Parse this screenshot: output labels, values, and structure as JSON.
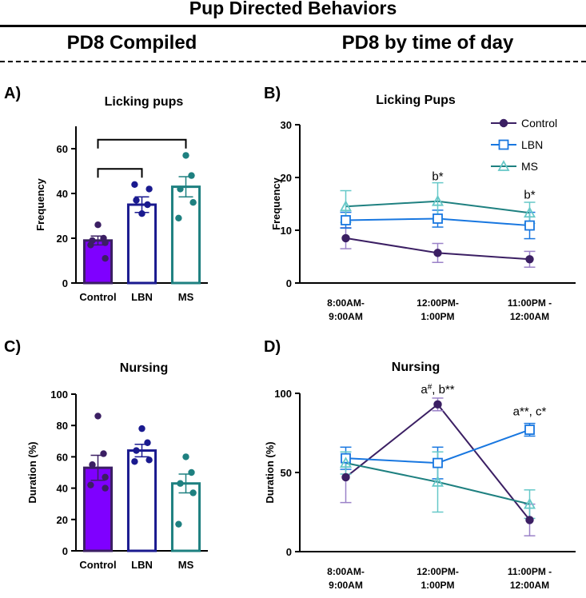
{
  "page": {
    "title": "Pup Directed Behaviors",
    "left_heading": "PD8 Compiled",
    "right_heading": "PD8 by time of day"
  },
  "colors": {
    "control": "#3b1f63",
    "control_err": "#9b82c8",
    "control_bar": "#7f00ff",
    "lbn": "#1877e0",
    "lbn_bar_edge": "#1a1a8f",
    "lbn_dot": "#1a1a8f",
    "ms": "#1e8080",
    "ms_marker": "#66c8c8"
  },
  "chart_data": [
    {
      "id": "A",
      "panel_label": "A)",
      "type": "bar",
      "title": "Licking pups",
      "ylabel": "Frequency",
      "ylim": [
        0,
        70
      ],
      "yticks": [
        0,
        20,
        40,
        60
      ],
      "categories": [
        "Control",
        "LBN",
        "MS"
      ],
      "values": [
        19,
        35,
        43
      ],
      "sem": [
        2,
        3.5,
        4.5
      ],
      "points": [
        [
          26,
          20,
          19,
          18,
          17,
          11
        ],
        [
          31,
          35,
          37,
          42,
          44
        ],
        [
          57,
          48,
          42,
          36,
          29
        ]
      ],
      "significance": [
        [
          "Control",
          "LBN"
        ],
        [
          "Control",
          "MS"
        ]
      ]
    },
    {
      "id": "B",
      "panel_label": "B)",
      "type": "line",
      "title": "Licking Pups",
      "ylabel": "Frequency",
      "ylim": [
        0,
        30
      ],
      "yticks": [
        0,
        10,
        20,
        30
      ],
      "categories": [
        "8:00AM-\n9:00AM",
        "12:00PM-\n1:00PM",
        "11:00PM -\n12:00AM"
      ],
      "series": [
        {
          "name": "Control",
          "values": [
            8.5,
            5.7,
            4.5
          ],
          "err": [
            2.0,
            1.8,
            1.5
          ]
        },
        {
          "name": "LBN",
          "values": [
            11.9,
            12.2,
            10.9
          ],
          "err": [
            1.5,
            1.6,
            2.5
          ]
        },
        {
          "name": "MS",
          "values": [
            14.5,
            15.5,
            13.3
          ],
          "err": [
            3.0,
            3.5,
            2.0
          ]
        }
      ],
      "annotations": [
        {
          "category": 1,
          "text": "b*",
          "y": 19.5
        },
        {
          "category": 2,
          "text": "b*",
          "y": 16
        }
      ],
      "legend": [
        "Control",
        "LBN",
        "MS"
      ]
    },
    {
      "id": "C",
      "panel_label": "C)",
      "type": "bar",
      "title": "Nursing",
      "ylabel": "Duration (%)",
      "ylim": [
        0,
        100
      ],
      "yticks": [
        0,
        20,
        40,
        60,
        80,
        100
      ],
      "categories": [
        "Control",
        "LBN",
        "MS"
      ],
      "values": [
        53,
        64,
        43
      ],
      "sem": [
        8,
        4,
        6
      ],
      "points": [
        [
          86,
          62,
          55,
          47,
          42,
          40
        ],
        [
          78,
          69,
          64,
          58,
          57
        ],
        [
          60,
          50,
          43,
          37,
          17
        ]
      ]
    },
    {
      "id": "D",
      "panel_label": "D)",
      "type": "line",
      "title": "Nursing",
      "ylabel": "Duration (%)",
      "ylim": [
        0,
        100
      ],
      "yticks": [
        0,
        50,
        100
      ],
      "categories": [
        "8:00AM-\n9:00AM",
        "12:00PM-\n1:00PM",
        "11:00PM -\n12:00AM"
      ],
      "series": [
        {
          "name": "Control",
          "values": [
            47,
            93,
            20
          ],
          "err": [
            16,
            4,
            10
          ]
        },
        {
          "name": "LBN",
          "values": [
            59,
            56,
            77
          ],
          "err": [
            7,
            10,
            4
          ]
        },
        {
          "name": "MS",
          "values": [
            56,
            44,
            30
          ],
          "err": [
            7,
            19,
            9
          ]
        }
      ],
      "annotations": [
        {
          "category": 1,
          "text": "a#, b**",
          "y": 100
        },
        {
          "category": 2,
          "text": "a**, c*",
          "y": 86
        }
      ]
    }
  ]
}
